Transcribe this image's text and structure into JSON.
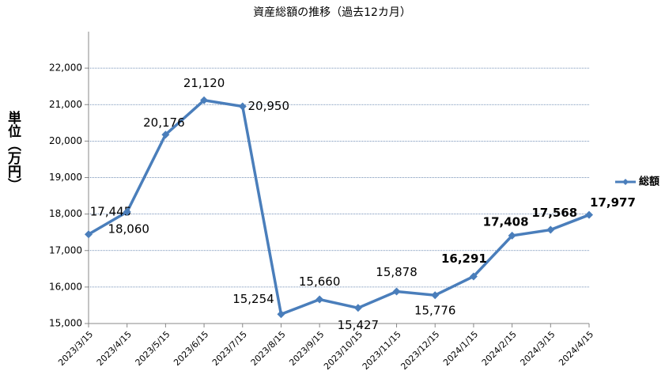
{
  "chart_data": {
    "type": "line",
    "title": "資産総額の推移（過去12カ月）",
    "y_label": "単位（万円）",
    "categories": [
      "2023/3/15",
      "2023/4/15",
      "2023/5/15",
      "2023/6/15",
      "2023/7/15",
      "2023/8/15",
      "2023/9/15",
      "2023/10/15",
      "2023/11/15",
      "2023/12/15",
      "2024/1/15",
      "2024/2/15",
      "2024/3/15",
      "2024/4/15"
    ],
    "series": [
      {
        "name": "総額",
        "color": "#4a7ebb",
        "values": [
          17445,
          18060,
          20176,
          21120,
          20950,
          15254,
          15660,
          15427,
          15878,
          15776,
          16291,
          17408,
          17568,
          17977
        ],
        "value_labels": [
          "17,445",
          "18,060",
          "20,176",
          "21,120",
          "20,950",
          "15,254",
          "15,660",
          "15,427",
          "15,878",
          "15,776",
          "16,291",
          "17,408",
          "17,568",
          "17,977"
        ],
        "value_label_bold": [
          false,
          false,
          false,
          false,
          false,
          false,
          false,
          false,
          false,
          false,
          true,
          true,
          true,
          true
        ]
      }
    ],
    "ylim": [
      15000,
      23000
    ],
    "yticks": [
      {
        "value": 15000,
        "label": "15,000"
      },
      {
        "value": 16000,
        "label": "16,000"
      },
      {
        "value": 17000,
        "label": "17,000"
      },
      {
        "value": 18000,
        "label": "18,000"
      },
      {
        "value": 19000,
        "label": "19,000"
      },
      {
        "value": 20000,
        "label": "20,000"
      },
      {
        "value": 21000,
        "label": "21,000"
      },
      {
        "value": 22000,
        "label": "22,000"
      }
    ],
    "grid": true,
    "legend": "right"
  }
}
